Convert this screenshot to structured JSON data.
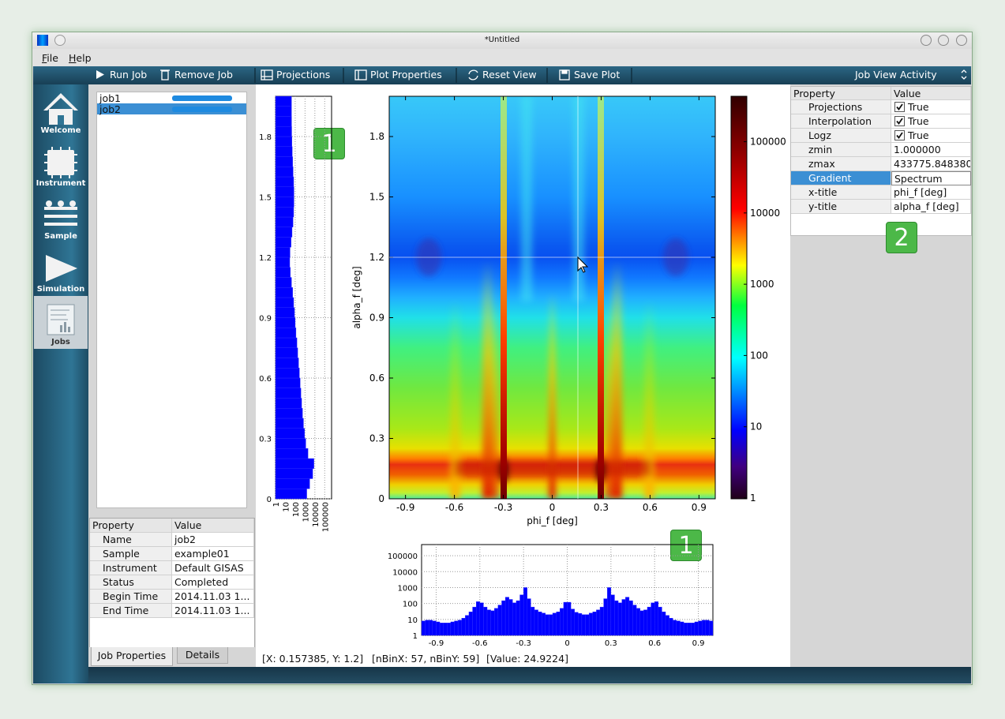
{
  "window": {
    "title": "*Untitled"
  },
  "menu": [
    "File",
    "Help"
  ],
  "toolbar": {
    "left": [
      "Run Job",
      "Remove Job"
    ],
    "plot": [
      "Projections",
      "Plot Properties",
      "Reset View",
      "Save Plot"
    ],
    "activity": "Job View Activity"
  },
  "sidebar": [
    "Welcome",
    "Instrument",
    "Sample",
    "Simulation",
    "Jobs"
  ],
  "jobs": [
    "job1",
    "job2"
  ],
  "job_properties": {
    "header": [
      "Property",
      "Value"
    ],
    "rows": [
      [
        "Name",
        "job2"
      ],
      [
        "Sample",
        "example01"
      ],
      [
        "Instrument",
        "Default GISAS"
      ],
      [
        "Status",
        "Completed"
      ],
      [
        "Begin Time",
        "2014.11.03 1..."
      ],
      [
        "End Time",
        "2014.11.03 1..."
      ]
    ]
  },
  "tabs": [
    "Job Properties",
    "Details"
  ],
  "plot_properties": {
    "header": [
      "Property",
      "Value"
    ],
    "rows": [
      [
        "Projections",
        "True"
      ],
      [
        "Interpolation",
        "True"
      ],
      [
        "Logz",
        "True"
      ],
      [
        "zmin",
        "1.000000"
      ],
      [
        "zmax",
        "433775.848380"
      ],
      [
        "Gradient",
        "Spectrum"
      ],
      [
        "x-title",
        "phi_f [deg]"
      ],
      [
        "y-title",
        "alpha_f [deg]"
      ]
    ]
  },
  "badges": [
    "1",
    "1",
    "2"
  ],
  "status": [
    "[X: 0.157385, Y: 1.2]",
    "[nBinX: 57, nBinY: 59]",
    "[Value: 24.9224]"
  ],
  "chart_data": [
    {
      "type": "heatmap",
      "xlabel": "phi_f [deg]",
      "ylabel": "alpha_f [deg]",
      "xlim": [
        -1,
        1
      ],
      "ylim": [
        0,
        2
      ],
      "xticks": [
        -0.9,
        -0.6,
        -0.3,
        0,
        0.3,
        0.6,
        0.9
      ],
      "yticks": [
        0,
        0.3,
        0.6,
        0.9,
        1.2,
        1.5,
        1.8
      ],
      "zlim": [
        1,
        433775.84838
      ],
      "zticks": [
        1,
        10,
        100,
        1000,
        10000,
        100000
      ],
      "log_z": true,
      "crosshair": {
        "x": 0.157385,
        "y": 1.2
      }
    },
    {
      "type": "histogram",
      "color": "#0000ff",
      "log_y": true,
      "grid": true,
      "xlim": [
        -1,
        1
      ],
      "xticks": [
        -0.9,
        -0.6,
        -0.3,
        0,
        0.3,
        0.6,
        0.9
      ],
      "ylim": [
        1,
        500000
      ],
      "yticks": [
        1,
        10,
        100,
        1000,
        10000,
        100000
      ],
      "bins": [
        -1,
        -0.975,
        -0.95,
        -0.925,
        -0.9,
        -0.875,
        -0.85,
        -0.825,
        -0.8,
        -0.775,
        -0.75,
        -0.725,
        -0.7,
        -0.675,
        -0.65,
        -0.625,
        -0.6,
        -0.575,
        -0.55,
        -0.525,
        -0.5,
        -0.475,
        -0.45,
        -0.425,
        -0.4,
        -0.375,
        -0.35,
        -0.325,
        -0.3,
        -0.275,
        -0.25,
        -0.225,
        -0.2,
        -0.175,
        -0.15,
        -0.125,
        -0.1,
        -0.075,
        -0.05,
        -0.025,
        0,
        0.025,
        0.05,
        0.075,
        0.1,
        0.125,
        0.15,
        0.175,
        0.2,
        0.225,
        0.25,
        0.275,
        0.3,
        0.325,
        0.35,
        0.375,
        0.4,
        0.425,
        0.45,
        0.475,
        0.5,
        0.525,
        0.55,
        0.575,
        0.6,
        0.625,
        0.65,
        0.675,
        0.7,
        0.725,
        0.75,
        0.775,
        0.8,
        0.825,
        0.85,
        0.875,
        0.9,
        0.925,
        0.95,
        0.975,
        1
      ],
      "values": [
        8,
        9,
        9,
        8,
        7,
        6,
        6,
        6,
        7,
        8,
        9,
        12,
        18,
        30,
        60,
        130,
        110,
        60,
        40,
        35,
        50,
        80,
        150,
        250,
        180,
        110,
        150,
        350,
        1000,
        200,
        60,
        40,
        30,
        25,
        20,
        20,
        25,
        30,
        50,
        120,
        120,
        45,
        28,
        24,
        20,
        20,
        25,
        30,
        40,
        60,
        200,
        1000,
        350,
        150,
        110,
        180,
        250,
        150,
        80,
        50,
        35,
        40,
        60,
        110,
        130,
        60,
        30,
        18,
        12,
        9,
        8,
        7,
        6,
        6,
        6,
        7,
        8,
        9,
        9,
        8
      ]
    },
    {
      "type": "histogram",
      "orientation": "horizontal",
      "color": "#0000ff",
      "log_x": true,
      "grid": true,
      "ylim": [
        0,
        2
      ],
      "yticks": [
        0,
        0.3,
        0.6,
        0.9,
        1.2,
        1.5,
        1.8
      ],
      "xlim": [
        1,
        500000
      ],
      "xticks": [
        1,
        10,
        100,
        1000,
        10000,
        100000
      ],
      "bins": [
        0,
        0.05,
        0.1,
        0.15,
        0.2,
        0.25,
        0.3,
        0.35,
        0.4,
        0.45,
        0.5,
        0.55,
        0.6,
        0.65,
        0.7,
        0.75,
        0.8,
        0.85,
        0.9,
        0.95,
        1,
        1.05,
        1.1,
        1.15,
        1.2,
        1.25,
        1.3,
        1.35,
        1.4,
        1.45,
        1.5,
        1.55,
        1.6,
        1.65,
        1.7,
        1.75,
        1.8,
        1.85,
        1.9,
        1.95,
        2
      ],
      "values": [
        1500,
        3000,
        6000,
        8000,
        2000,
        1200,
        900,
        700,
        550,
        450,
        380,
        320,
        270,
        220,
        180,
        150,
        120,
        100,
        85,
        70,
        55,
        42,
        32,
        28,
        30,
        38,
        48,
        60,
        70,
        75,
        75,
        70,
        62,
        55,
        50,
        46,
        44,
        43,
        42,
        42
      ]
    }
  ]
}
